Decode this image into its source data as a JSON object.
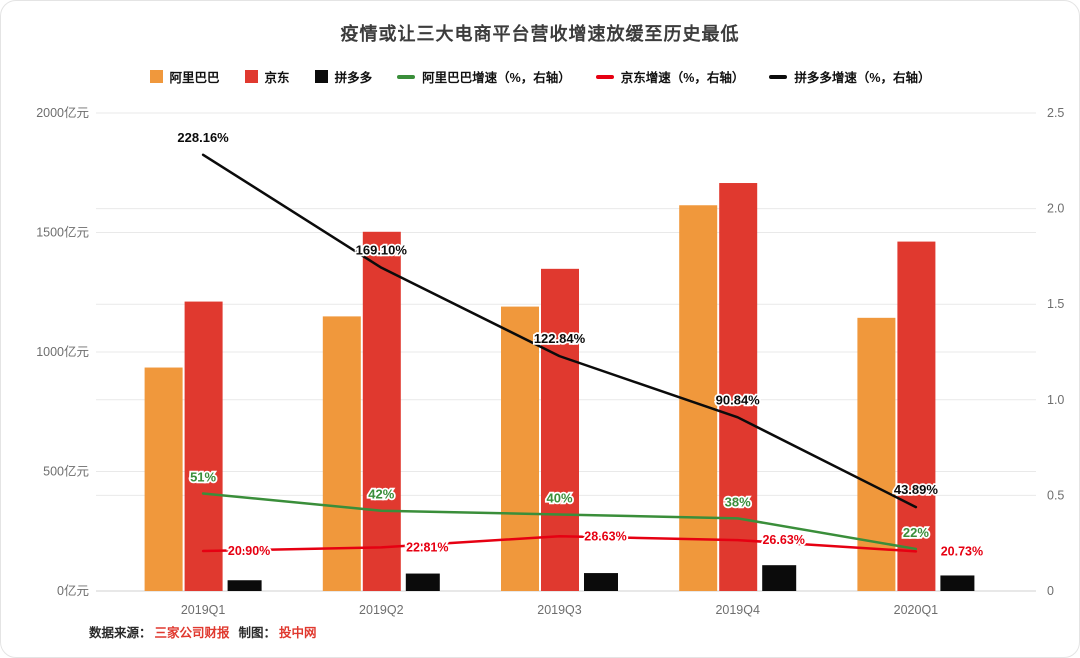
{
  "title": "疫情或让三大电商平台营收增速放缓至历史最低",
  "footer": {
    "source_label": "数据来源：",
    "source_value": "三家公司财报",
    "credit_label": "制图：",
    "credit_value": "投中网"
  },
  "colors": {
    "alibaba_bar": "#f0983c",
    "jd_bar": "#e0392f",
    "pdd_bar": "#0b0b0b",
    "alibaba_growth_line": "#3a8e3a",
    "jd_growth_line": "#e60012",
    "pdd_growth_line": "#0b0b0b",
    "title_text": "#3c3c3c",
    "axis_text": "#6e6e6e",
    "gridline": "#e9e9e9",
    "axis_line": "#d2d2d2",
    "source_accent": "#e0392f",
    "background": "#ffffff"
  },
  "chart_data": {
    "type": "bar+line",
    "title": "疫情或让三大电商平台营收增速放缓至历史最低",
    "categories": [
      "2019Q1",
      "2019Q2",
      "2019Q3",
      "2019Q4",
      "2020Q1"
    ],
    "bar_series": [
      {
        "id": "alibaba",
        "name": "阿里巴巴",
        "color": "#f0983c",
        "axis": "left",
        "values": [
          935,
          1149,
          1190,
          1614,
          1143
        ]
      },
      {
        "id": "jd",
        "name": "京东",
        "color": "#e0392f",
        "axis": "left",
        "values": [
          1211,
          1503,
          1348,
          1707,
          1462
        ]
      },
      {
        "id": "pdd",
        "name": "拼多多",
        "color": "#0b0b0b",
        "axis": "left",
        "values": [
          45,
          73,
          75,
          108,
          65
        ]
      }
    ],
    "line_series": [
      {
        "id": "alibaba-growth",
        "name": "阿里巴巴增速（%，右轴）",
        "color": "#3a8e3a",
        "axis": "right",
        "values": [
          0.51,
          0.42,
          0.4,
          0.38,
          0.22
        ],
        "labels": [
          "51%",
          "42%",
          "40%",
          "38%",
          "22%"
        ]
      },
      {
        "id": "jd-growth",
        "name": "京东增速（%，右轴）",
        "color": "#e60012",
        "axis": "right",
        "values": [
          0.209,
          0.2281,
          0.2863,
          0.2663,
          0.2073
        ],
        "labels": [
          "20.90%",
          "22.81%",
          "28.63%",
          "26.63%",
          "20.73%"
        ]
      },
      {
        "id": "pdd-growth",
        "name": "拼多多增速（%，右轴）",
        "color": "#0b0b0b",
        "axis": "right",
        "values": [
          2.2816,
          1.691,
          1.2284,
          0.9084,
          0.4389
        ],
        "labels": [
          "228.16%",
          "169.10%",
          "122.84%",
          "90.84%",
          "43.89%"
        ]
      }
    ],
    "left_axis": {
      "unit": "亿元",
      "min": 0,
      "max": 2000,
      "ticks": [
        0,
        500,
        1000,
        1500,
        2000
      ],
      "tick_labels": [
        "0亿元",
        "500亿元",
        "1000亿元",
        "1500亿元",
        "2000亿元"
      ]
    },
    "right_axis": {
      "min": 0,
      "max": 2.5,
      "ticks": [
        0,
        0.5,
        1.0,
        1.5,
        2.0,
        2.5
      ],
      "tick_labels": [
        "0",
        "0.5",
        "1.0",
        "1.5",
        "2.0",
        "2.5"
      ]
    },
    "grid": true,
    "legend_position": "top"
  }
}
